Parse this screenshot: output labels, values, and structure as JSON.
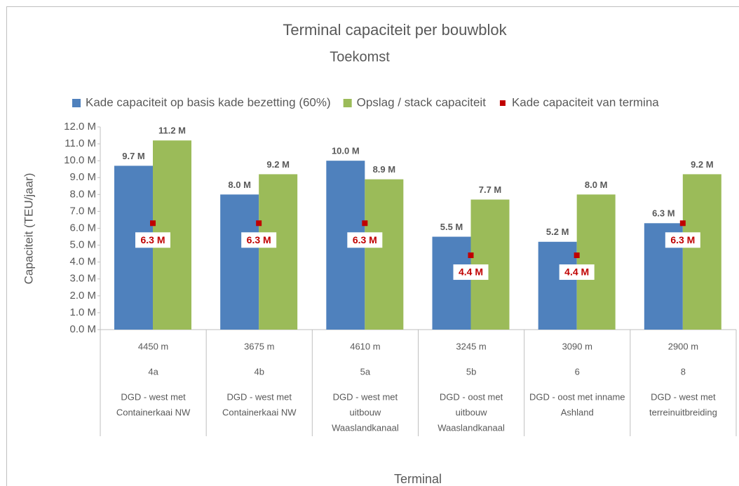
{
  "chart_data": {
    "type": "bar",
    "title": "Terminal capaciteit per bouwblok",
    "subtitle": "Toekomst",
    "y_axis_label": "Capaciteit (TEU/jaar)",
    "x_axis_label": "Terminal",
    "categories": [
      "4a",
      "4b",
      "5a",
      "5b",
      "6",
      "8"
    ],
    "category_lengths": [
      "4450 m",
      "3675 m",
      "4610 m",
      "3245 m",
      "3090 m",
      "2900 m"
    ],
    "category_descriptions": [
      [
        "DGD - west met",
        "Containerkaai NW"
      ],
      [
        "DGD - west met",
        "Containerkaai NW"
      ],
      [
        "DGD - west met",
        "uitbouw",
        "Waaslandkanaal"
      ],
      [
        "DGD - oost met",
        "uitbouw",
        "Waaslandkanaal"
      ],
      [
        "DGD - oost met inname",
        "Ashland"
      ],
      [
        "DGD - west met",
        "terreinuitbreiding"
      ]
    ],
    "series": [
      {
        "name": "Kade capaciteit op basis kade bezetting (60%)",
        "color": "#4f81bd",
        "kind": "bar",
        "values": [
          9.7,
          8.0,
          10.0,
          5.5,
          5.2,
          6.3
        ],
        "value_labels": [
          "9.7 M",
          "8.0 M",
          "10.0 M",
          "5.5 M",
          "5.2 M",
          "6.3 M"
        ]
      },
      {
        "name": "Opslag / stack capaciteit",
        "color": "#9bbb59",
        "kind": "bar",
        "values": [
          11.2,
          9.2,
          8.9,
          7.7,
          8.0,
          9.2
        ],
        "value_labels": [
          "11.2 M",
          "9.2 M",
          "8.9 M",
          "7.7 M",
          "8.0 M",
          "9.2 M"
        ]
      },
      {
        "name": "Kade capaciteit van termina",
        "color": "#c00000",
        "kind": "marker",
        "values": [
          6.3,
          6.3,
          6.3,
          4.4,
          4.4,
          6.3
        ],
        "value_labels": [
          "6.3 M",
          "6.3 M",
          "6.3 M",
          "4.4 M",
          "4.4 M",
          "6.3 M"
        ]
      }
    ],
    "ylim": [
      0,
      12
    ],
    "yticks": [
      {
        "value": 0,
        "label": "0.0 M"
      },
      {
        "value": 1,
        "label": "1.0 M"
      },
      {
        "value": 2,
        "label": "2.0 M"
      },
      {
        "value": 3,
        "label": "3.0 M"
      },
      {
        "value": 4,
        "label": "4.0 M"
      },
      {
        "value": 5,
        "label": "5.0 M"
      },
      {
        "value": 6,
        "label": "6.0 M"
      },
      {
        "value": 7,
        "label": "7.0 M"
      },
      {
        "value": 8,
        "label": "8.0 M"
      },
      {
        "value": 9,
        "label": "9.0 M"
      },
      {
        "value": 10,
        "label": "10.0 M"
      },
      {
        "value": 11,
        "label": "11.0 M"
      },
      {
        "value": 12,
        "label": "12.0 M"
      }
    ],
    "grid": false,
    "legend": "top"
  }
}
